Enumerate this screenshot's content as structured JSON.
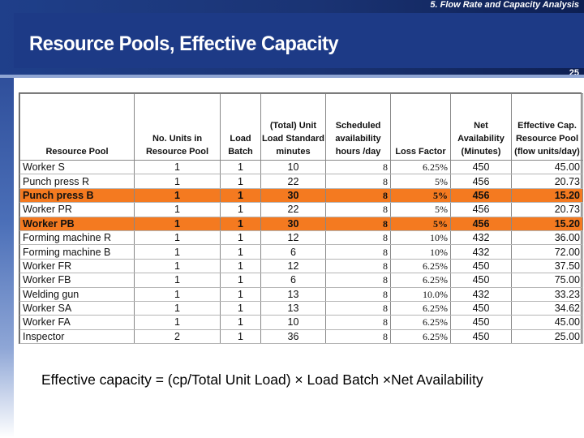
{
  "header": {
    "section_label": "5. Flow Rate and Capacity Analysis",
    "title": "Resource Pools,  Effective Capacity",
    "slide_number": "25"
  },
  "table": {
    "columns": [
      "Resource Pool",
      "No. Units in Resource Pool",
      "Load Batch",
      "(Total) Unit Load Standard minutes",
      "Scheduled availability hours /day",
      "Loss Factor",
      "Net Availability (Minutes)",
      "Effective Cap. Resource  Pool (flow units/day)"
    ],
    "rows": [
      {
        "pool": "Worker S",
        "units": "1",
        "batch": "1",
        "load": "10",
        "hours": "8",
        "loss": "6.25%",
        "net": "450",
        "cap": "45.00",
        "highlight": false
      },
      {
        "pool": "Punch press R",
        "units": "1",
        "batch": "1",
        "load": "22",
        "hours": "8",
        "loss": "5%",
        "net": "456",
        "cap": "20.73",
        "highlight": false
      },
      {
        "pool": "Punch press B",
        "units": "1",
        "batch": "1",
        "load": "30",
        "hours": "8",
        "loss": "5%",
        "net": "456",
        "cap": "15.20",
        "highlight": true
      },
      {
        "pool": "Worker PR",
        "units": "1",
        "batch": "1",
        "load": "22",
        "hours": "8",
        "loss": "5%",
        "net": "456",
        "cap": "20.73",
        "highlight": false
      },
      {
        "pool": "Worker PB",
        "units": "1",
        "batch": "1",
        "load": "30",
        "hours": "8",
        "loss": "5%",
        "net": "456",
        "cap": "15.20",
        "highlight": true
      },
      {
        "pool": "Forming machine R",
        "units": "1",
        "batch": "1",
        "load": "12",
        "hours": "8",
        "loss": "10%",
        "net": "432",
        "cap": "36.00",
        "highlight": false
      },
      {
        "pool": "Forming machine B",
        "units": "1",
        "batch": "1",
        "load": "6",
        "hours": "8",
        "loss": "10%",
        "net": "432",
        "cap": "72.00",
        "highlight": false
      },
      {
        "pool": "Worker FR",
        "units": "1",
        "batch": "1",
        "load": "12",
        "hours": "8",
        "loss": "6.25%",
        "net": "450",
        "cap": "37.50",
        "highlight": false
      },
      {
        "pool": "Worker FB",
        "units": "1",
        "batch": "1",
        "load": "6",
        "hours": "8",
        "loss": "6.25%",
        "net": "450",
        "cap": "75.00",
        "highlight": false
      },
      {
        "pool": "Welding gun",
        "units": "1",
        "batch": "1",
        "load": "13",
        "hours": "8",
        "loss": "10.0%",
        "net": "432",
        "cap": "33.23",
        "highlight": false
      },
      {
        "pool": "Worker SA",
        "units": "1",
        "batch": "1",
        "load": "13",
        "hours": "8",
        "loss": "6.25%",
        "net": "450",
        "cap": "34.62",
        "highlight": false
      },
      {
        "pool": "Worker FA",
        "units": "1",
        "batch": "1",
        "load": "10",
        "hours": "8",
        "loss": "6.25%",
        "net": "450",
        "cap": "45.00",
        "highlight": false
      },
      {
        "pool": "Inspector",
        "units": "2",
        "batch": "1",
        "load": "36",
        "hours": "8",
        "loss": "6.25%",
        "net": "450",
        "cap": "25.00",
        "highlight": false
      }
    ]
  },
  "formula": "Effective capacity = (cp/Total Unit Load) × Load Batch ×Net Availability",
  "colors": {
    "banner": "#1d3a86",
    "highlight": "#f47a20"
  }
}
